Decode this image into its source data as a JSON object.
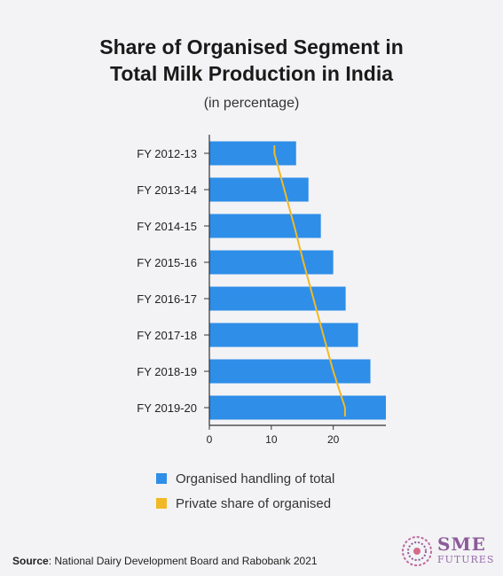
{
  "title_line1": "Share of Organised Segment in",
  "title_line2": "Total Milk Production in India",
  "subtitle": "(in percentage)",
  "source_label": "Source",
  "source_text": ": National Dairy Development Board and Rabobank 2021",
  "logo": {
    "sme": "SME",
    "futures": "FUTURES"
  },
  "colors": {
    "bar": "#2e8ee8",
    "line": "#f2b926",
    "axis": "#333333"
  },
  "chart_data": {
    "type": "bar",
    "orientation": "horizontal",
    "categories": [
      "FY 2012-13",
      "FY 2013-14",
      "FY 2014-15",
      "FY 2015-16",
      "FY 2016-17",
      "FY 2017-18",
      "FY 2018-19",
      "FY 2019-20"
    ],
    "series": [
      {
        "name": "Organised handling of total",
        "type": "bar",
        "values": [
          14,
          16,
          18,
          20,
          22,
          24,
          26,
          28.5
        ]
      },
      {
        "name": "Private share of organised",
        "type": "line",
        "values": [
          10.5,
          12.1,
          13.7,
          15.2,
          16.8,
          18.4,
          20.0,
          21.9
        ]
      }
    ],
    "xlim": [
      0,
      28.5
    ],
    "xticks": [
      0,
      10,
      20
    ],
    "grid": false,
    "legend": "bottom"
  }
}
